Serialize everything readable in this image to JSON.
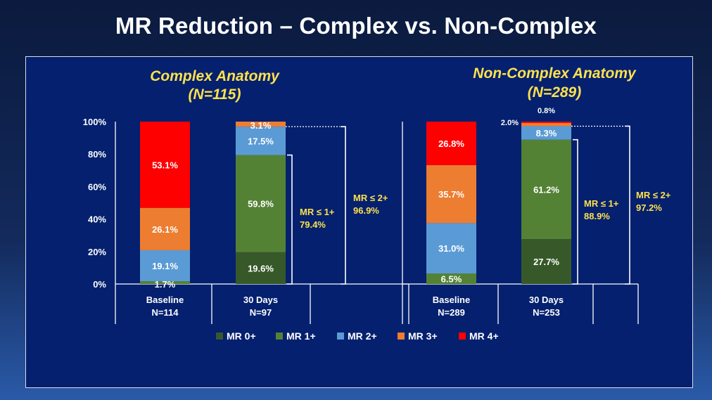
{
  "title": "MR Reduction – Complex vs. Non-Complex",
  "colors": {
    "panel_bg": "#04206f",
    "MR 0+": "#37592a",
    "MR 1+": "#548235",
    "MR 2+": "#5b9bd5",
    "MR 3+": "#ed7d31",
    "MR 4+": "#ff0000",
    "heading": "#ffe14d",
    "bracket_label": "#ffe14d",
    "text": "#ffffff"
  },
  "chart_data": [
    {
      "type": "bar",
      "stacked": true,
      "title": "Complex Anatomy",
      "subtitle": "(N=115)",
      "categories": [
        "Baseline",
        "30 Days"
      ],
      "category_counts": [
        "N=114",
        "N=97"
      ],
      "y_ticks": [
        "100%",
        "80%",
        "60%",
        "40%",
        "20%",
        "0%"
      ],
      "ylim": [
        0,
        100
      ],
      "series": [
        {
          "name": "MR 0+",
          "values": [
            0,
            19.6
          ],
          "labels": [
            "",
            "19.6%"
          ]
        },
        {
          "name": "MR 1+",
          "values": [
            1.7,
            59.8
          ],
          "labels": [
            "1.7%",
            "59.8%"
          ]
        },
        {
          "name": "MR 2+",
          "values": [
            19.1,
            17.5
          ],
          "labels": [
            "19.1%",
            "17.5%"
          ]
        },
        {
          "name": "MR 3+",
          "values": [
            26.1,
            3.1
          ],
          "labels": [
            "26.1%",
            "3.1%"
          ]
        },
        {
          "name": "MR 4+",
          "values": [
            53.1,
            0
          ],
          "labels": [
            "53.1%",
            ""
          ]
        }
      ],
      "brackets": [
        {
          "label": "MR ≤ 1+",
          "value": "79.4%"
        },
        {
          "label": "MR ≤ 2+",
          "value": "96.9%"
        }
      ]
    },
    {
      "type": "bar",
      "stacked": true,
      "title": "Non-Complex Anatomy",
      "subtitle": "(N=289)",
      "categories": [
        "Baseline",
        "30 Days"
      ],
      "category_counts": [
        "N=289",
        "N=253"
      ],
      "ylim": [
        0,
        100
      ],
      "series": [
        {
          "name": "MR 0+",
          "values": [
            0,
            27.7
          ],
          "labels": [
            "",
            "27.7%"
          ]
        },
        {
          "name": "MR 1+",
          "values": [
            6.5,
            61.2
          ],
          "labels": [
            "6.5%",
            "61.2%"
          ]
        },
        {
          "name": "MR 2+",
          "values": [
            31.0,
            8.3
          ],
          "labels": [
            "31.0%",
            "8.3%"
          ]
        },
        {
          "name": "MR 3+",
          "values": [
            35.7,
            2.0
          ],
          "labels": [
            "35.7%",
            "2.0%"
          ]
        },
        {
          "name": "MR 4+",
          "values": [
            26.8,
            0.8
          ],
          "labels": [
            "26.8%",
            "0.8%"
          ]
        }
      ],
      "brackets": [
        {
          "label": "MR ≤ 1+",
          "value": "88.9%"
        },
        {
          "label": "MR ≤ 2+",
          "value": "97.2%"
        }
      ]
    }
  ],
  "legend": [
    "MR 0+",
    "MR 1+",
    "MR 2+",
    "MR 3+",
    "MR 4+"
  ]
}
